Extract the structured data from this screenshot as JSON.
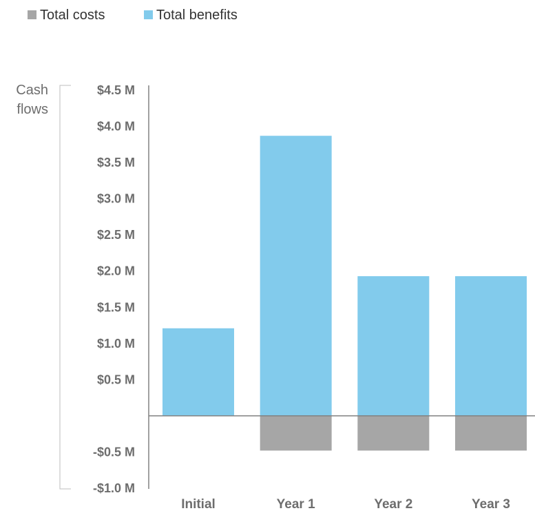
{
  "chart_data": {
    "type": "bar",
    "ylabel_lines": [
      "Cash",
      "flows"
    ],
    "categories": [
      "Initial",
      "Year 1",
      "Year 2",
      "Year 3"
    ],
    "series": [
      {
        "name": "Total costs",
        "color": "#a6a6a6",
        "values": [
          0,
          -0.48,
          -0.48,
          -0.48
        ]
      },
      {
        "name": "Total benefits",
        "color": "#82cbec",
        "values": [
          1.21,
          3.87,
          1.93,
          1.93
        ]
      }
    ],
    "ylim": [
      -1.0,
      4.5
    ],
    "yticks": [
      {
        "value": 4.5,
        "label": "$4.5 M"
      },
      {
        "value": 4.0,
        "label": "$4.0 M"
      },
      {
        "value": 3.5,
        "label": "$3.5 M"
      },
      {
        "value": 3.0,
        "label": "$3.0 M"
      },
      {
        "value": 2.5,
        "label": "$2.5 M"
      },
      {
        "value": 2.0,
        "label": "$2.0 M"
      },
      {
        "value": 1.5,
        "label": "$1.5 M"
      },
      {
        "value": 1.0,
        "label": "$1.0 M"
      },
      {
        "value": 0.5,
        "label": "$0.5 M"
      },
      {
        "value": -0.5,
        "label": "-$0.5 M"
      },
      {
        "value": -1.0,
        "label": "-$1.0 M"
      }
    ],
    "legend_position": "top-left",
    "grid": false
  }
}
